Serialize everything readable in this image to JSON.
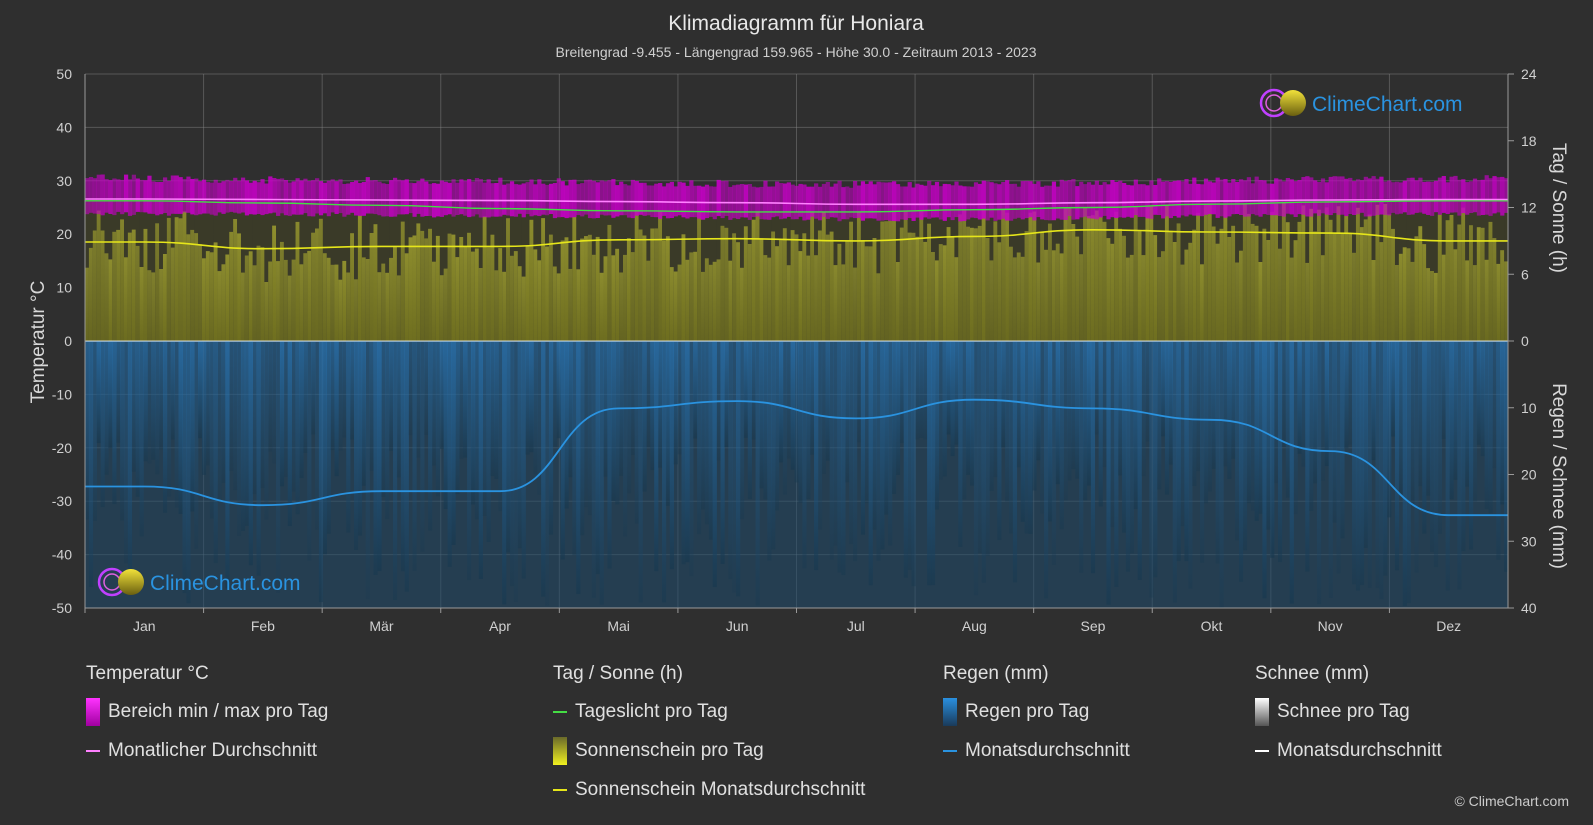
{
  "title": "Klimadiagramm für Honiara",
  "subtitle": "Breitengrad -9.455 - Längengrad 159.965 - Höhe 30.0 - Zeitraum 2013 - 2023",
  "brand": "ClimeChart.com",
  "copyright": "© ClimeChart.com",
  "colors": {
    "background": "#2f2f2f",
    "grid": "#5a5a5a",
    "temp_range": "#c800c8",
    "temp_avg": "#ff80ff",
    "daylight": "#44dd44",
    "sunshine_fill": "#9a9a2a",
    "sunshine_avg": "#e6e61a",
    "rain_fill": "#1f5f8f",
    "rain_avg": "#2a93e0",
    "snow_avg": "#ffffff",
    "brand_text": "#2a93e0"
  },
  "chart_data": {
    "type": "line",
    "x": [
      "Jan",
      "Feb",
      "Mär",
      "Apr",
      "Mai",
      "Jun",
      "Jul",
      "Aug",
      "Sep",
      "Okt",
      "Nov",
      "Dez"
    ],
    "axes": {
      "left": {
        "label": "Temperatur °C",
        "range": [
          -50,
          50
        ],
        "ticks": [
          "50",
          "40",
          "30",
          "20",
          "10",
          "0",
          "-10",
          "-20",
          "-30",
          "-40",
          "-50"
        ]
      },
      "right_top": {
        "label": "Tag / Sonne (h)",
        "range": [
          0,
          24
        ],
        "ticks": [
          "24",
          "18",
          "12",
          "6",
          "0"
        ]
      },
      "right_bottom": {
        "label": "Regen / Schnee (mm)",
        "range": [
          0,
          40
        ],
        "ticks": [
          "10",
          "20",
          "30",
          "40"
        ]
      }
    },
    "series": [
      {
        "name": "Bereich min / max pro Tag",
        "axis": "temperature",
        "min": [
          23.8,
          23.8,
          23.6,
          23.5,
          23.3,
          23.0,
          22.8,
          22.8,
          23.1,
          23.4,
          23.6,
          23.8
        ],
        "max": [
          30.5,
          30.2,
          30.0,
          29.9,
          29.7,
          29.5,
          29.3,
          29.4,
          29.7,
          30.0,
          30.3,
          30.4
        ]
      },
      {
        "name": "Monatlicher Durchschnitt",
        "axis": "temperature",
        "values": [
          26.6,
          26.5,
          26.4,
          26.3,
          26.1,
          25.9,
          25.6,
          25.6,
          25.9,
          26.2,
          26.4,
          26.5
        ]
      },
      {
        "name": "Tageslicht pro Tag",
        "axis": "daylight_hours",
        "values": [
          12.6,
          12.4,
          12.2,
          11.9,
          11.7,
          11.6,
          11.6,
          11.8,
          12.0,
          12.3,
          12.5,
          12.6
        ]
      },
      {
        "name": "Sonnenschein Monatsdurchschnitt",
        "axis": "daylight_hours",
        "values": [
          8.9,
          8.3,
          8.5,
          8.5,
          9.1,
          9.2,
          9.0,
          9.4,
          10.0,
          9.8,
          9.7,
          9.0
        ]
      },
      {
        "name": "Monatsdurchschnitt Regen",
        "axis": "precipitation_mm",
        "values": [
          21.8,
          24.6,
          22.5,
          22.5,
          10.1,
          9.0,
          11.6,
          8.8,
          10.1,
          11.8,
          16.5,
          26.1
        ]
      },
      {
        "name": "Monatsdurchschnitt Schnee",
        "axis": "precipitation_mm",
        "values": [
          0,
          0,
          0,
          0,
          0,
          0,
          0,
          0,
          0,
          0,
          0,
          0
        ]
      }
    ],
    "grid": true
  },
  "legend": {
    "temperature": {
      "heading": "Temperatur °C",
      "items": [
        "Bereich min / max pro Tag",
        "Monatlicher Durchschnitt"
      ]
    },
    "sun": {
      "heading": "Tag / Sonne (h)",
      "items": [
        "Tageslicht pro Tag",
        "Sonnenschein pro Tag",
        "Sonnenschein Monatsdurchschnitt"
      ]
    },
    "rain": {
      "heading": "Regen (mm)",
      "items": [
        "Regen pro Tag",
        "Monatsdurchschnitt"
      ]
    },
    "snow": {
      "heading": "Schnee (mm)",
      "items": [
        "Schnee pro Tag",
        "Monatsdurchschnitt"
      ]
    }
  }
}
